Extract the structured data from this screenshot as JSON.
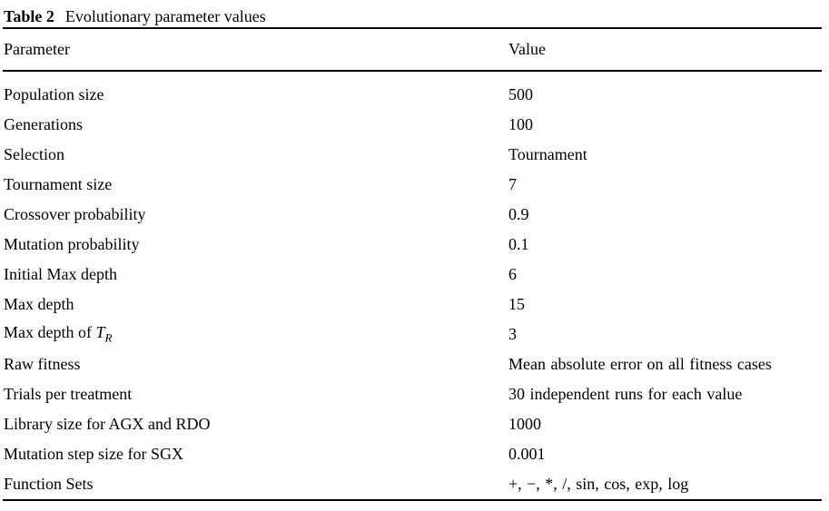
{
  "caption": {
    "label": "Table 2",
    "text": "Evolutionary parameter values"
  },
  "table": {
    "columns": [
      "Parameter",
      "Value"
    ],
    "rows": [
      {
        "parameter": "Population size",
        "value": "500"
      },
      {
        "parameter": "Generations",
        "value": "100"
      },
      {
        "parameter": "Selection",
        "value": "Tournament"
      },
      {
        "parameter": "Tournament size",
        "value": "7"
      },
      {
        "parameter": "Crossover probability",
        "value": "0.9"
      },
      {
        "parameter": "Mutation probability",
        "value": "0.1"
      },
      {
        "parameter": "Initial Max depth",
        "value": "6"
      },
      {
        "parameter": "Max depth",
        "value": "15"
      },
      {
        "parameter": "Max depth of ",
        "parameter_var": "T",
        "parameter_sub": "R",
        "value": "3"
      },
      {
        "parameter": "Raw fitness",
        "value": "Mean absolute error on all fitness cases"
      },
      {
        "parameter": "Trials per treatment",
        "value": "30 independent runs for each value"
      },
      {
        "parameter": "Library size for AGX and RDO",
        "value": "1000"
      },
      {
        "parameter": "Mutation step size for SGX",
        "value": "0.001"
      },
      {
        "parameter": "Function Sets",
        "value": "+, −, *, /, sin, cos, exp, log"
      }
    ]
  },
  "colors": {
    "text": "#000000",
    "background": "#ffffff",
    "rule": "#000000"
  }
}
